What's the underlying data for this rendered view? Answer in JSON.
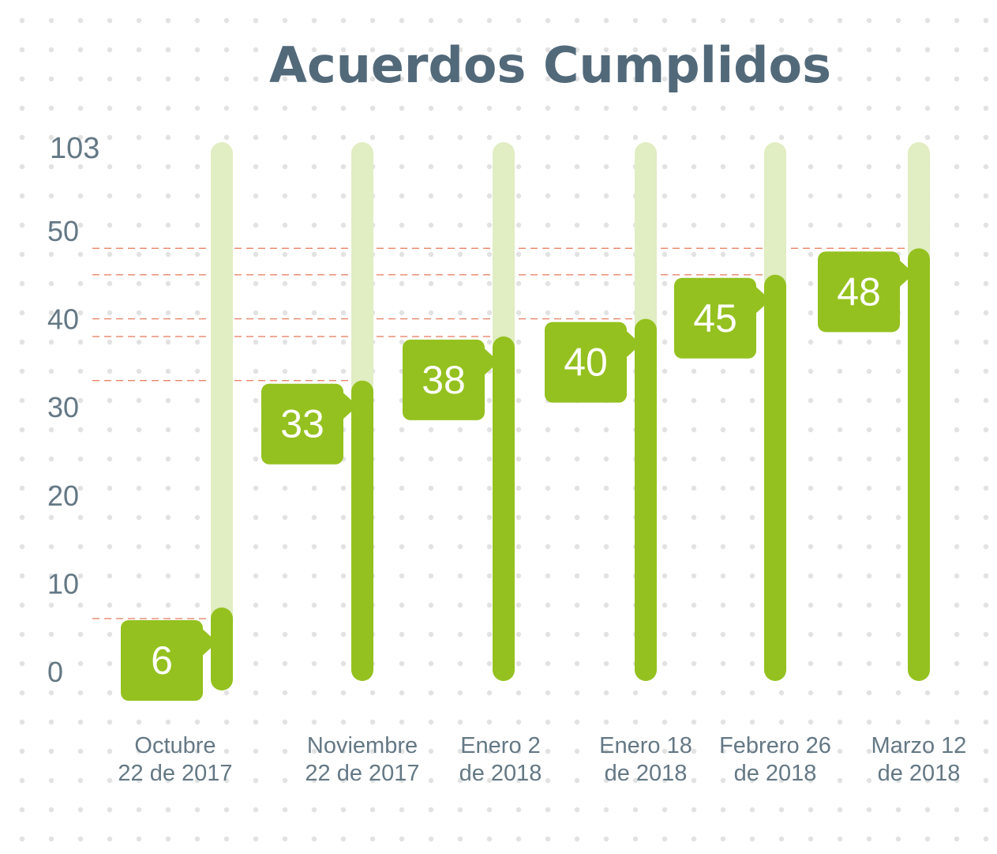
{
  "colors": {
    "title": "#52697a",
    "axis_text": "#647885",
    "dots": "#e2e2e2",
    "bar_bg": "#e1edc2",
    "bar_fg": "#94c11f",
    "label_fg": "#ffffff",
    "guide": "#e8856a"
  },
  "chart_data": {
    "type": "bar",
    "title": "Acuerdos Cumplidos",
    "xlabel": "",
    "ylabel": "",
    "y_max_label": "103",
    "y_ticks": [
      0,
      10,
      20,
      30,
      40,
      50
    ],
    "ylim": [
      0,
      103
    ],
    "grid": false,
    "categories": [
      [
        "Octubre",
        "22 de 2017"
      ],
      [
        "Noviembre",
        "22 de 2017"
      ],
      [
        "Enero 2",
        "de 2018"
      ],
      [
        "Enero 18",
        "de 2018"
      ],
      [
        "Febrero 26",
        "de 2018"
      ],
      [
        "Marzo 12",
        "de 2018"
      ]
    ],
    "values": [
      6,
      33,
      38,
      40,
      45,
      48
    ]
  }
}
